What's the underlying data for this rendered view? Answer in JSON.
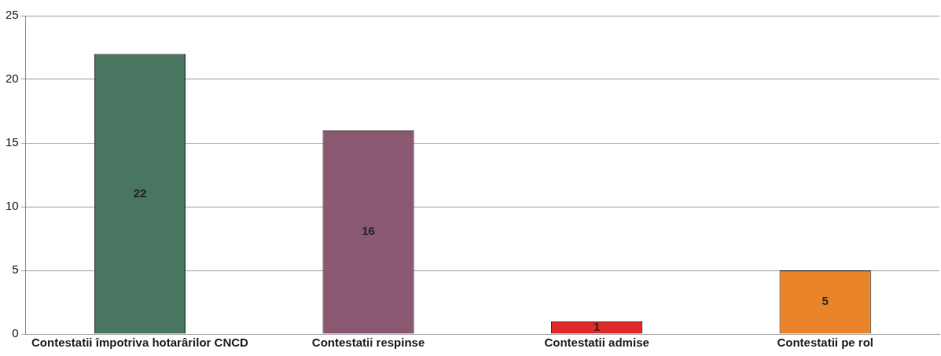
{
  "chart_data": {
    "type": "bar",
    "categories": [
      "Contestatii împotriva hotarârilor CNCD",
      "Contestatii respinse",
      "Contestatii admise",
      "Contestatii pe rol"
    ],
    "values": [
      22,
      16,
      1,
      5
    ],
    "colors": [
      "#487660",
      "#8a5870",
      "#e02a2a",
      "#ea842a"
    ],
    "ylim": [
      0,
      25
    ],
    "yticks": [
      0,
      5,
      10,
      15,
      20,
      25
    ],
    "grid": "y",
    "legend": false,
    "data_labels": true
  }
}
